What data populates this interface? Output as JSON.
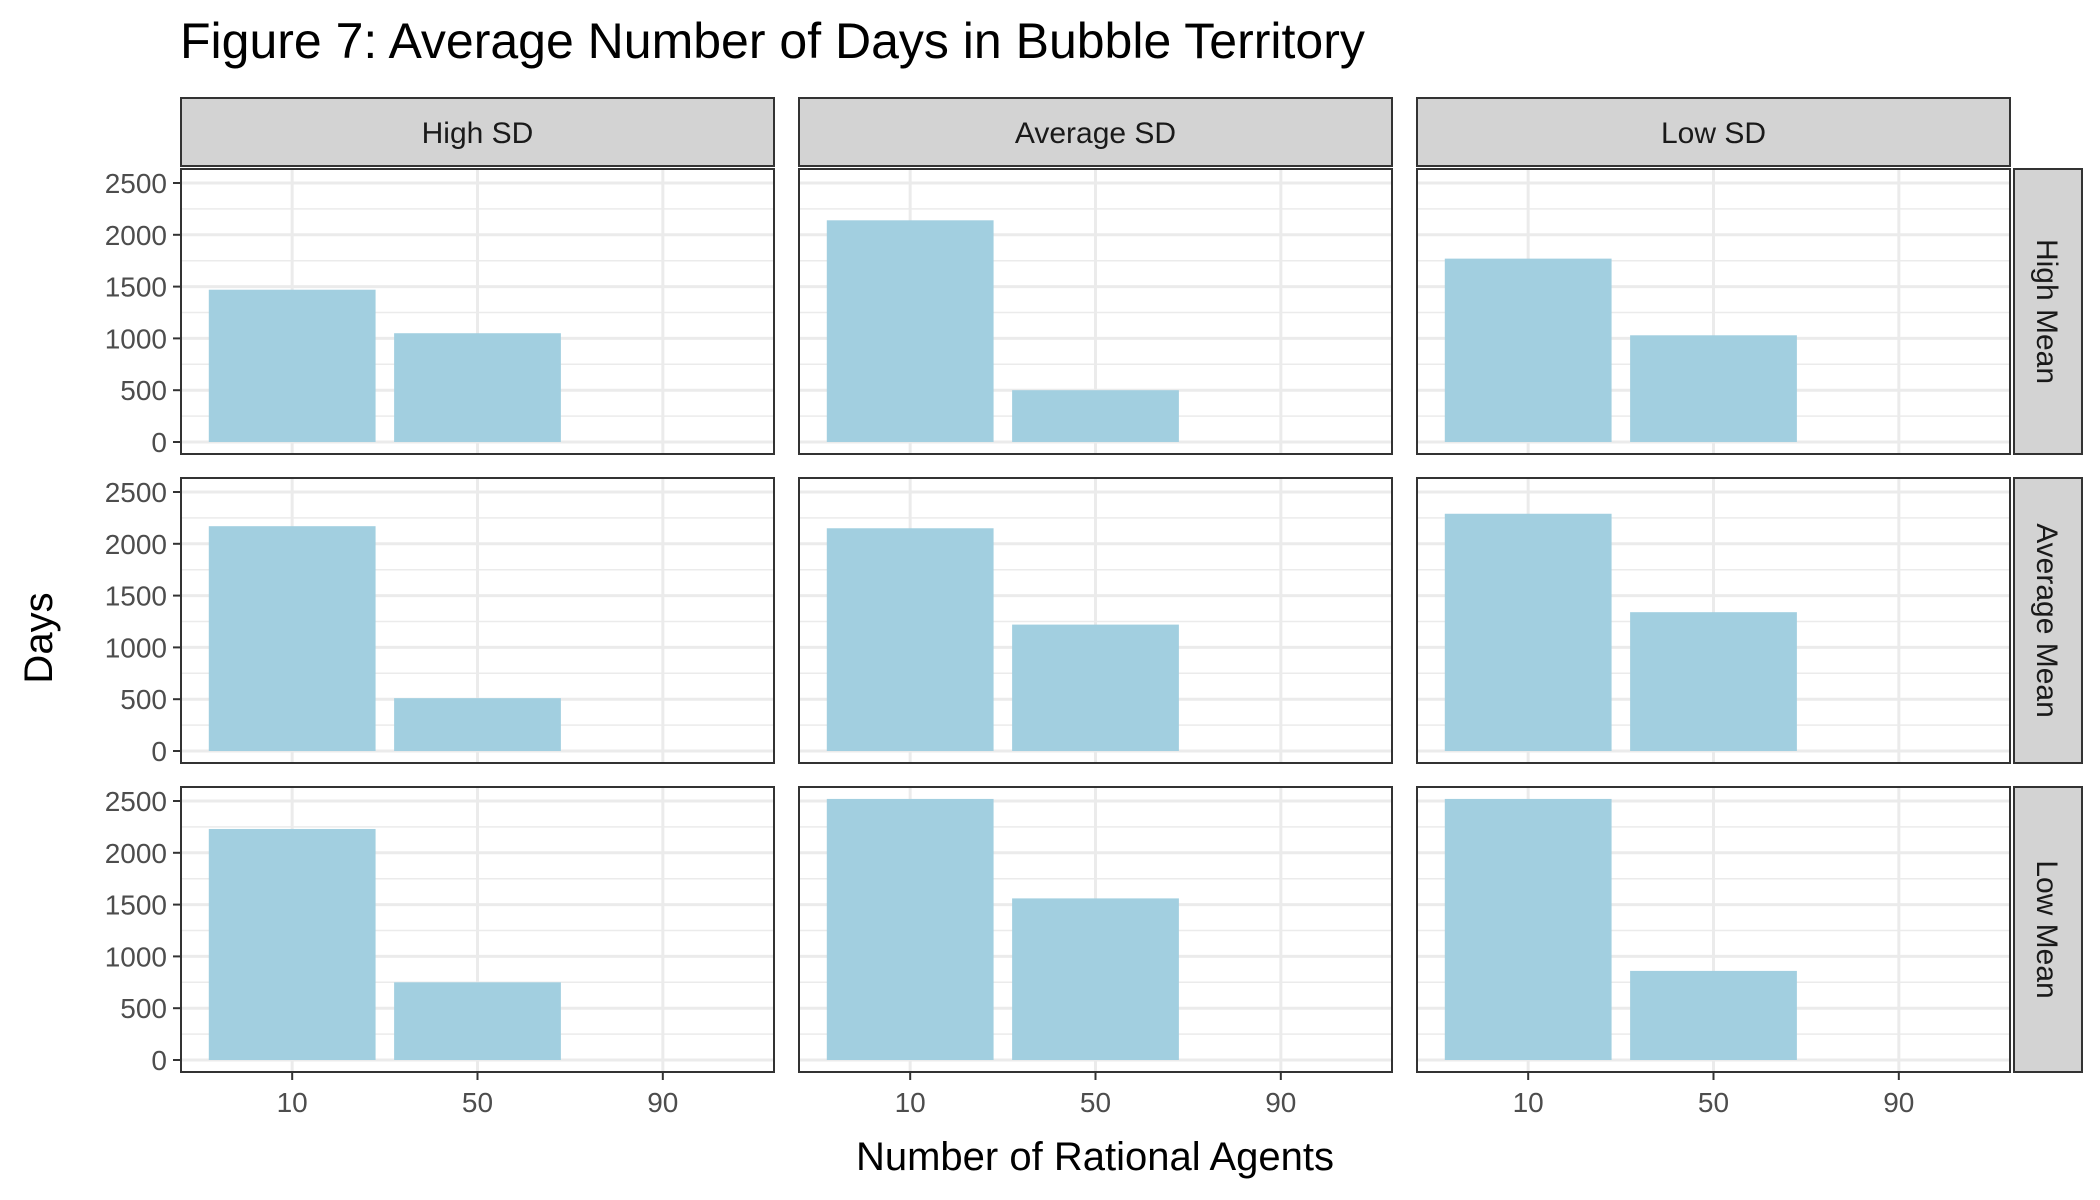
{
  "colors": {
    "bar": "#a2cfe0",
    "grid": "#ebebeb",
    "strip_fill": "#d3d3d3",
    "frame": "#333333",
    "tick_text": "#4d4d4d",
    "text": "#000000"
  },
  "chart_data": {
    "type": "bar",
    "title": "Figure 7: Average Number of Days in Bubble Territory",
    "xlabel": "Number of Rational Agents",
    "ylabel": "Days",
    "categories": [
      "10",
      "50",
      "90"
    ],
    "ylim": [
      0,
      2500
    ],
    "yticks": [
      0,
      500,
      1000,
      1500,
      2000,
      2500
    ],
    "grid": true,
    "legend": "none",
    "facet_columns": [
      "High SD",
      "Average SD",
      "Low SD"
    ],
    "facet_rows": [
      "High Mean",
      "Average Mean",
      "Low Mean"
    ],
    "panels": [
      {
        "row": "High Mean",
        "column": "High SD",
        "values": [
          1470,
          1050,
          0
        ]
      },
      {
        "row": "High Mean",
        "column": "Average SD",
        "values": [
          2140,
          500,
          0
        ]
      },
      {
        "row": "High Mean",
        "column": "Low SD",
        "values": [
          1770,
          1030,
          0
        ]
      },
      {
        "row": "Average Mean",
        "column": "High SD",
        "values": [
          2170,
          510,
          0
        ]
      },
      {
        "row": "Average Mean",
        "column": "Average SD",
        "values": [
          2150,
          1220,
          0
        ]
      },
      {
        "row": "Average Mean",
        "column": "Low SD",
        "values": [
          2290,
          1340,
          0
        ]
      },
      {
        "row": "Low Mean",
        "column": "High SD",
        "values": [
          2230,
          750,
          0
        ]
      },
      {
        "row": "Low Mean",
        "column": "Average SD",
        "values": [
          2520,
          1560,
          0
        ]
      },
      {
        "row": "Low Mean",
        "column": "Low SD",
        "values": [
          2520,
          860,
          0
        ]
      }
    ]
  }
}
